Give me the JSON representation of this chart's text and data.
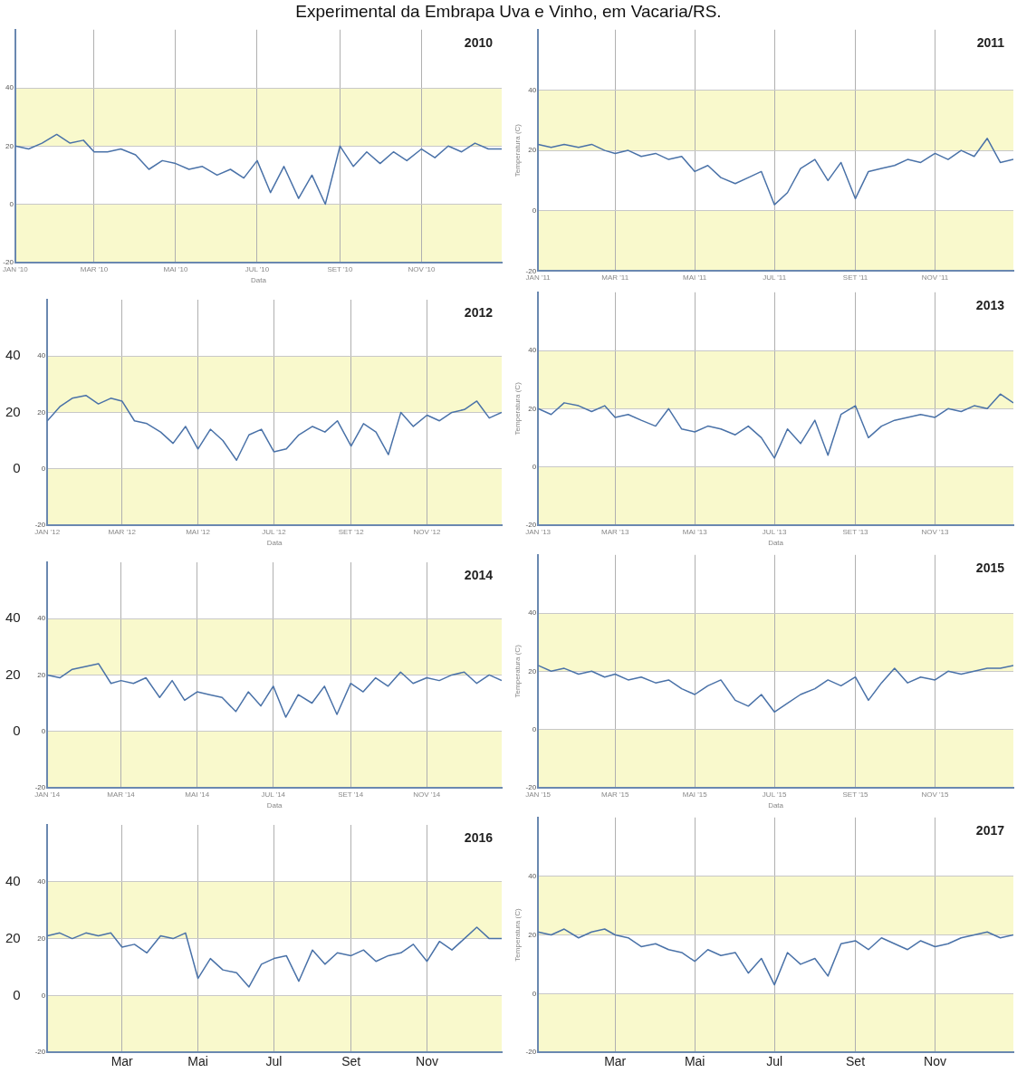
{
  "chart_data": [
    {
      "type": "line",
      "title": "2010",
      "annotations": [
        "Experimental da Embrapa Uva e Vinho, em Vacaria/RS."
      ],
      "xlabel": "Data",
      "color": "#4a72a8",
      "grid": true,
      "marker": "none",
      "line_style": "solid",
      "x": [
        "2010-01-01",
        "2010-01-11",
        "2010-01-21",
        "2010-02-01",
        "2010-02-11",
        "2010-02-21",
        "2010-03-01",
        "2010-03-11",
        "2010-03-21",
        "2010-04-01",
        "2010-04-11",
        "2010-04-21",
        "2010-05-01",
        "2010-05-11",
        "2010-05-21",
        "2010-06-01",
        "2010-06-11",
        "2010-06-21",
        "2010-07-01",
        "2010-07-11",
        "2010-07-21",
        "2010-08-01",
        "2010-08-11",
        "2010-08-21",
        "2010-09-01",
        "2010-09-11",
        "2010-09-21",
        "2010-10-01",
        "2010-10-11",
        "2010-10-21",
        "2010-11-01",
        "2010-11-11",
        "2010-11-21",
        "2010-12-01",
        "2010-12-11",
        "2010-12-21",
        "2010-12-31"
      ],
      "values": [
        20,
        19,
        21,
        24,
        21,
        22,
        18,
        18,
        19,
        17,
        12,
        15,
        14,
        12,
        13,
        10,
        12,
        9,
        15,
        4,
        13,
        2,
        10,
        0,
        20,
        13,
        18,
        14,
        18,
        15,
        19,
        16,
        20,
        18,
        21,
        19,
        19
      ],
      "xlim": [
        "2010-01-01",
        "2010-12-31"
      ],
      "xticks": [
        {
          "value": "2010-01-01",
          "label": "JAN '10"
        },
        {
          "value": "2010-03-01",
          "label": "MAR '10"
        },
        {
          "value": "2010-05-01",
          "label": "MAI '10"
        },
        {
          "value": "2010-07-01",
          "label": "JUL '10"
        },
        {
          "value": "2010-09-01",
          "label": "SET '10"
        },
        {
          "value": "2010-11-01",
          "label": "NOV '10"
        }
      ],
      "ylim": [
        -20,
        60
      ],
      "yticks": [
        -20,
        0,
        20,
        40
      ],
      "bands": [
        {
          "axis": "y",
          "from": 20,
          "to": 40,
          "color": "#f9f9cc"
        },
        {
          "axis": "y",
          "from": -20,
          "to": 0,
          "color": "#f9f9cc"
        }
      ]
    },
    {
      "type": "line",
      "title": "2011",
      "ylabel": "Temperatura (C)",
      "color": "#4a72a8",
      "grid": true,
      "marker": "none",
      "line_style": "solid",
      "x": [
        "2011-01-01",
        "2011-01-11",
        "2011-01-21",
        "2011-02-01",
        "2011-02-11",
        "2011-02-21",
        "2011-03-01",
        "2011-03-11",
        "2011-03-21",
        "2011-04-01",
        "2011-04-11",
        "2011-04-21",
        "2011-05-01",
        "2011-05-11",
        "2011-05-21",
        "2011-06-01",
        "2011-06-11",
        "2011-06-21",
        "2011-07-01",
        "2011-07-11",
        "2011-07-21",
        "2011-08-01",
        "2011-08-11",
        "2011-08-21",
        "2011-09-01",
        "2011-09-11",
        "2011-09-21",
        "2011-10-01",
        "2011-10-11",
        "2011-10-21",
        "2011-11-01",
        "2011-11-11",
        "2011-11-21",
        "2011-12-01",
        "2011-12-11",
        "2011-12-21",
        "2011-12-31"
      ],
      "values": [
        22,
        21,
        22,
        21,
        22,
        20,
        19,
        20,
        18,
        19,
        17,
        18,
        13,
        15,
        11,
        9,
        11,
        13,
        2,
        6,
        14,
        17,
        10,
        16,
        4,
        13,
        14,
        15,
        17,
        16,
        19,
        17,
        20,
        18,
        24,
        16,
        17
      ],
      "xlim": [
        "2011-01-01",
        "2011-12-31"
      ],
      "xticks": [
        {
          "value": "2011-01-01",
          "label": "JAN '11"
        },
        {
          "value": "2011-03-01",
          "label": "MAR '11"
        },
        {
          "value": "2011-05-01",
          "label": "MAI '11"
        },
        {
          "value": "2011-07-01",
          "label": "JUL '11"
        },
        {
          "value": "2011-09-01",
          "label": "SET '11"
        },
        {
          "value": "2011-11-01",
          "label": "NOV '11"
        }
      ],
      "ylim": [
        -20,
        60
      ],
      "yticks": [
        -20,
        0,
        20,
        40
      ],
      "bands": [
        {
          "axis": "y",
          "from": 20,
          "to": 40,
          "color": "#f9f9cc"
        },
        {
          "axis": "y",
          "from": -20,
          "to": 0,
          "color": "#f9f9cc"
        }
      ]
    },
    {
      "type": "line",
      "title": "2012",
      "xlabel": "Data",
      "color": "#4a72a8",
      "grid": true,
      "marker": "none",
      "line_style": "solid",
      "x": [
        "2012-01-01",
        "2012-01-11",
        "2012-01-21",
        "2012-02-01",
        "2012-02-11",
        "2012-02-21",
        "2012-03-01",
        "2012-03-11",
        "2012-03-21",
        "2012-04-01",
        "2012-04-11",
        "2012-04-21",
        "2012-05-01",
        "2012-05-11",
        "2012-05-21",
        "2012-06-01",
        "2012-06-11",
        "2012-06-21",
        "2012-07-01",
        "2012-07-11",
        "2012-07-21",
        "2012-08-01",
        "2012-08-11",
        "2012-08-21",
        "2012-09-01",
        "2012-09-11",
        "2012-09-21",
        "2012-10-01",
        "2012-10-11",
        "2012-10-21",
        "2012-11-01",
        "2012-11-11",
        "2012-11-21",
        "2012-12-01",
        "2012-12-11",
        "2012-12-21",
        "2012-12-31"
      ],
      "values": [
        17,
        22,
        25,
        26,
        23,
        25,
        24,
        17,
        16,
        13,
        9,
        15,
        7,
        14,
        10,
        3,
        12,
        14,
        6,
        7,
        12,
        15,
        13,
        17,
        8,
        16,
        13,
        5,
        20,
        15,
        19,
        17,
        20,
        21,
        24,
        18,
        20
      ],
      "xlim": [
        "2012-01-01",
        "2012-12-31"
      ],
      "xticks": [
        {
          "value": "2012-01-01",
          "label": "JAN '12"
        },
        {
          "value": "2012-03-01",
          "label": "MAR '12"
        },
        {
          "value": "2012-05-01",
          "label": "MAI '12"
        },
        {
          "value": "2012-07-01",
          "label": "JUL '12"
        },
        {
          "value": "2012-09-01",
          "label": "SET '12"
        },
        {
          "value": "2012-11-01",
          "label": "NOV '12"
        }
      ],
      "ylim": [
        -20,
        60
      ],
      "yticks": [
        -20,
        0,
        20,
        40
      ],
      "y2lim": [
        -20,
        60
      ],
      "y2ticks": [
        0,
        20,
        40
      ],
      "bands": [
        {
          "axis": "y",
          "from": 20,
          "to": 40,
          "color": "#f9f9cc"
        },
        {
          "axis": "y",
          "from": -20,
          "to": 0,
          "color": "#f9f9cc"
        }
      ]
    },
    {
      "type": "line",
      "title": "2013",
      "xlabel": "Data",
      "ylabel": "Temperatura (C)",
      "color": "#4a72a8",
      "grid": true,
      "marker": "none",
      "line_style": "solid",
      "x": [
        "2013-01-01",
        "2013-01-11",
        "2013-01-21",
        "2013-02-01",
        "2013-02-11",
        "2013-02-21",
        "2013-03-01",
        "2013-03-11",
        "2013-03-21",
        "2013-04-01",
        "2013-04-11",
        "2013-04-21",
        "2013-05-01",
        "2013-05-11",
        "2013-05-21",
        "2013-06-01",
        "2013-06-11",
        "2013-06-21",
        "2013-07-01",
        "2013-07-11",
        "2013-07-21",
        "2013-08-01",
        "2013-08-11",
        "2013-08-21",
        "2013-09-01",
        "2013-09-11",
        "2013-09-21",
        "2013-10-01",
        "2013-10-11",
        "2013-10-21",
        "2013-11-01",
        "2013-11-11",
        "2013-11-21",
        "2013-12-01",
        "2013-12-11",
        "2013-12-21",
        "2013-12-31"
      ],
      "values": [
        20,
        18,
        22,
        21,
        19,
        21,
        17,
        18,
        16,
        14,
        20,
        13,
        12,
        14,
        13,
        11,
        14,
        10,
        3,
        13,
        8,
        16,
        4,
        18,
        21,
        10,
        14,
        16,
        17,
        18,
        17,
        20,
        19,
        21,
        20,
        25,
        22
      ],
      "xlim": [
        "2013-01-01",
        "2013-12-31"
      ],
      "xticks": [
        {
          "value": "2013-01-01",
          "label": "JAN '13"
        },
        {
          "value": "2013-03-01",
          "label": "MAR '13"
        },
        {
          "value": "2013-05-01",
          "label": "MAI '13"
        },
        {
          "value": "2013-07-01",
          "label": "JUL '13"
        },
        {
          "value": "2013-09-01",
          "label": "SET '13"
        },
        {
          "value": "2013-11-01",
          "label": "NOV '13"
        }
      ],
      "ylim": [
        -20,
        60
      ],
      "yticks": [
        -20,
        0,
        20,
        40
      ],
      "bands": [
        {
          "axis": "y",
          "from": 20,
          "to": 40,
          "color": "#f9f9cc"
        },
        {
          "axis": "y",
          "from": -20,
          "to": 0,
          "color": "#f9f9cc"
        }
      ]
    },
    {
      "type": "line",
      "title": "2014",
      "xlabel": "Data",
      "color": "#4a72a8",
      "grid": true,
      "marker": "none",
      "line_style": "solid",
      "x": [
        "2014-01-01",
        "2014-01-11",
        "2014-01-21",
        "2014-02-01",
        "2014-02-11",
        "2014-02-21",
        "2014-03-01",
        "2014-03-11",
        "2014-03-21",
        "2014-04-01",
        "2014-04-11",
        "2014-04-21",
        "2014-05-01",
        "2014-05-11",
        "2014-05-21",
        "2014-06-01",
        "2014-06-11",
        "2014-06-21",
        "2014-07-01",
        "2014-07-11",
        "2014-07-21",
        "2014-08-01",
        "2014-08-11",
        "2014-08-21",
        "2014-09-01",
        "2014-09-11",
        "2014-09-21",
        "2014-10-01",
        "2014-10-11",
        "2014-10-21",
        "2014-11-01",
        "2014-11-11",
        "2014-11-21",
        "2014-12-01",
        "2014-12-11",
        "2014-12-21",
        "2014-12-31"
      ],
      "values": [
        20,
        19,
        22,
        23,
        24,
        17,
        18,
        17,
        19,
        12,
        18,
        11,
        14,
        13,
        12,
        7,
        14,
        9,
        16,
        5,
        13,
        10,
        16,
        6,
        17,
        14,
        19,
        16,
        21,
        17,
        19,
        18,
        20,
        21,
        17,
        20,
        18
      ],
      "xlim": [
        "2014-01-01",
        "2014-12-31"
      ],
      "xticks": [
        {
          "value": "2014-01-01",
          "label": "JAN '14"
        },
        {
          "value": "2014-03-01",
          "label": "MAR '14"
        },
        {
          "value": "2014-05-01",
          "label": "MAI '14"
        },
        {
          "value": "2014-07-01",
          "label": "JUL '14"
        },
        {
          "value": "2014-09-01",
          "label": "SET '14"
        },
        {
          "value": "2014-11-01",
          "label": "NOV '14"
        }
      ],
      "ylim": [
        -20,
        60
      ],
      "yticks": [
        -20,
        0,
        20,
        40
      ],
      "y2lim": [
        -20,
        60
      ],
      "y2ticks": [
        0,
        20,
        40
      ],
      "bands": [
        {
          "axis": "y",
          "from": 20,
          "to": 40,
          "color": "#f9f9cc"
        },
        {
          "axis": "y",
          "from": -20,
          "to": 0,
          "color": "#f9f9cc"
        }
      ]
    },
    {
      "type": "line",
      "title": "2015",
      "xlabel": "Data",
      "ylabel": "Temperatura (C)",
      "color": "#4a72a8",
      "grid": true,
      "marker": "none",
      "line_style": "solid",
      "x": [
        "2015-01-01",
        "2015-01-11",
        "2015-01-21",
        "2015-02-01",
        "2015-02-11",
        "2015-02-21",
        "2015-03-01",
        "2015-03-11",
        "2015-03-21",
        "2015-04-01",
        "2015-04-11",
        "2015-04-21",
        "2015-05-01",
        "2015-05-11",
        "2015-05-21",
        "2015-06-01",
        "2015-06-11",
        "2015-06-21",
        "2015-07-01",
        "2015-07-11",
        "2015-07-21",
        "2015-08-01",
        "2015-08-11",
        "2015-08-21",
        "2015-09-01",
        "2015-09-11",
        "2015-09-21",
        "2015-10-01",
        "2015-10-11",
        "2015-10-21",
        "2015-11-01",
        "2015-11-11",
        "2015-11-21",
        "2015-12-01",
        "2015-12-11",
        "2015-12-21",
        "2015-12-31"
      ],
      "values": [
        22,
        20,
        21,
        19,
        20,
        18,
        19,
        17,
        18,
        16,
        17,
        14,
        12,
        15,
        17,
        10,
        8,
        12,
        6,
        9,
        12,
        14,
        17,
        15,
        18,
        10,
        16,
        21,
        16,
        18,
        17,
        20,
        19,
        20,
        21,
        21,
        22
      ],
      "xlim": [
        "2015-01-01",
        "2015-12-31"
      ],
      "xticks": [
        {
          "value": "2015-01-01",
          "label": "JAN '15"
        },
        {
          "value": "2015-03-01",
          "label": "MAR '15"
        },
        {
          "value": "2015-05-01",
          "label": "MAI '15"
        },
        {
          "value": "2015-07-01",
          "label": "JUL '15"
        },
        {
          "value": "2015-09-01",
          "label": "SET '15"
        },
        {
          "value": "2015-11-01",
          "label": "NOV '15"
        }
      ],
      "ylim": [
        -20,
        60
      ],
      "yticks": [
        -20,
        0,
        20,
        40
      ],
      "bands": [
        {
          "axis": "y",
          "from": 20,
          "to": 40,
          "color": "#f9f9cc"
        },
        {
          "axis": "y",
          "from": -20,
          "to": 0,
          "color": "#f9f9cc"
        }
      ]
    },
    {
      "type": "line",
      "title": "2016",
      "color": "#4a72a8",
      "grid": true,
      "marker": "none",
      "line_style": "solid",
      "x": [
        "2016-01-01",
        "2016-01-11",
        "2016-01-21",
        "2016-02-01",
        "2016-02-11",
        "2016-02-21",
        "2016-03-01",
        "2016-03-11",
        "2016-03-21",
        "2016-04-01",
        "2016-04-11",
        "2016-04-21",
        "2016-05-01",
        "2016-05-11",
        "2016-05-21",
        "2016-06-01",
        "2016-06-11",
        "2016-06-21",
        "2016-07-01",
        "2016-07-11",
        "2016-07-21",
        "2016-08-01",
        "2016-08-11",
        "2016-08-21",
        "2016-09-01",
        "2016-09-11",
        "2016-09-21",
        "2016-10-01",
        "2016-10-11",
        "2016-10-21",
        "2016-11-01",
        "2016-11-11",
        "2016-11-21",
        "2016-12-01",
        "2016-12-11",
        "2016-12-21",
        "2016-12-31"
      ],
      "values": [
        21,
        22,
        20,
        22,
        21,
        22,
        17,
        18,
        15,
        21,
        20,
        22,
        6,
        13,
        9,
        8,
        3,
        11,
        13,
        14,
        5,
        16,
        11,
        15,
        14,
        16,
        12,
        14,
        15,
        18,
        12,
        19,
        16,
        20,
        24,
        20,
        20
      ],
      "xlim": [
        "2016-01-01",
        "2016-12-31"
      ],
      "xticks": [
        {
          "value": "2016-01-01",
          "label": null
        },
        {
          "value": "2016-03-01",
          "label": "Mar"
        },
        {
          "value": "2016-05-01",
          "label": "Mai"
        },
        {
          "value": "2016-07-01",
          "label": "Jul"
        },
        {
          "value": "2016-09-01",
          "label": "Set"
        },
        {
          "value": "2016-11-01",
          "label": "Nov"
        }
      ],
      "ylim": [
        -20,
        60
      ],
      "yticks": [
        -20,
        0,
        20,
        40
      ],
      "y2lim": [
        -20,
        60
      ],
      "y2ticks": [
        0,
        20,
        40
      ],
      "bands": [
        {
          "axis": "y",
          "from": 20,
          "to": 40,
          "color": "#f9f9cc"
        },
        {
          "axis": "y",
          "from": -20,
          "to": 0,
          "color": "#f9f9cc"
        }
      ]
    },
    {
      "type": "line",
      "title": "2017",
      "ylabel": "Temperatura (C)",
      "color": "#4a72a8",
      "grid": true,
      "marker": "none",
      "line_style": "solid",
      "x": [
        "2017-01-01",
        "2017-01-11",
        "2017-01-21",
        "2017-02-01",
        "2017-02-11",
        "2017-02-21",
        "2017-03-01",
        "2017-03-11",
        "2017-03-21",
        "2017-04-01",
        "2017-04-11",
        "2017-04-21",
        "2017-05-01",
        "2017-05-11",
        "2017-05-21",
        "2017-06-01",
        "2017-06-11",
        "2017-06-21",
        "2017-07-01",
        "2017-07-11",
        "2017-07-21",
        "2017-08-01",
        "2017-08-11",
        "2017-08-21",
        "2017-09-01",
        "2017-09-11",
        "2017-09-21",
        "2017-10-01",
        "2017-10-11",
        "2017-10-21",
        "2017-11-01",
        "2017-11-11",
        "2017-11-21",
        "2017-12-01",
        "2017-12-11",
        "2017-12-21",
        "2017-12-31"
      ],
      "values": [
        21,
        20,
        22,
        19,
        21,
        22,
        20,
        19,
        16,
        17,
        15,
        14,
        11,
        15,
        13,
        14,
        7,
        12,
        3,
        14,
        10,
        12,
        6,
        17,
        18,
        15,
        19,
        17,
        15,
        18,
        16,
        17,
        19,
        20,
        21,
        19,
        20
      ],
      "xlim": [
        "2017-01-01",
        "2017-12-31"
      ],
      "xticks": [
        {
          "value": "2017-01-01",
          "label": null
        },
        {
          "value": "2017-03-01",
          "label": "Mar"
        },
        {
          "value": "2017-05-01",
          "label": "Mai"
        },
        {
          "value": "2017-07-01",
          "label": "Jul"
        },
        {
          "value": "2017-09-01",
          "label": "Set"
        },
        {
          "value": "2017-11-01",
          "label": "Nov"
        }
      ],
      "ylim": [
        -20,
        60
      ],
      "yticks": [
        -20,
        0,
        20,
        40
      ],
      "bands": [
        {
          "axis": "y",
          "from": 20,
          "to": 40,
          "color": "#f9f9cc"
        },
        {
          "axis": "y",
          "from": -20,
          "to": 0,
          "color": "#f9f9cc"
        }
      ]
    }
  ]
}
